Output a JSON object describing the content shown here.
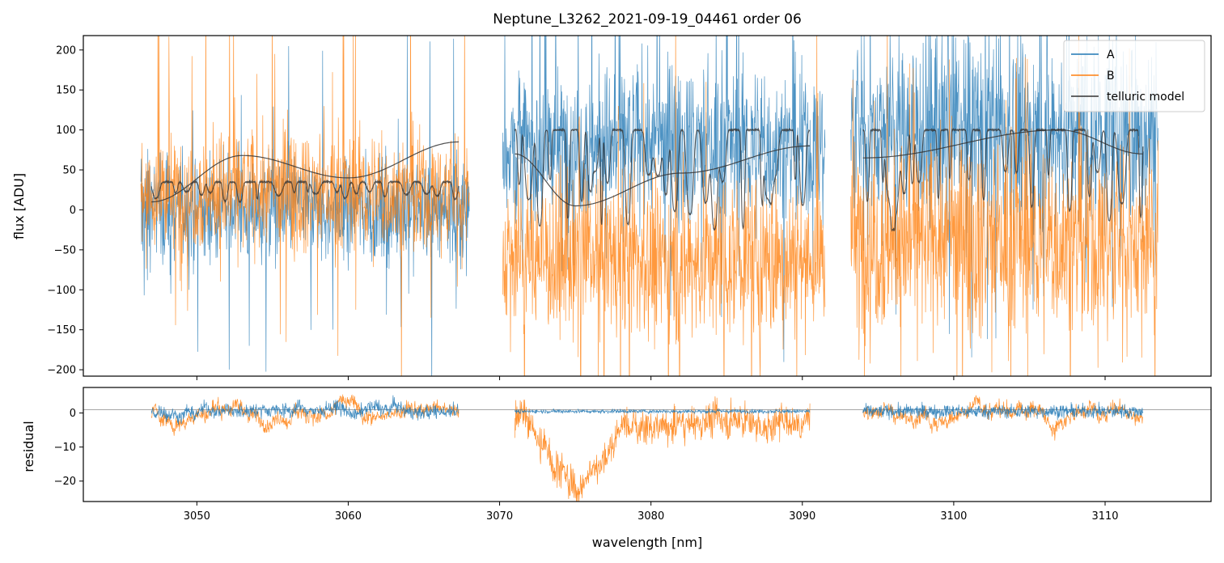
{
  "chart_data": [
    {
      "type": "line",
      "title": "Neptune_L3262_2021-09-19_04461  order 06",
      "xlabel": "",
      "ylabel": "flux [ADU]",
      "xlim": [
        3042.5,
        3117
      ],
      "ylim": [
        -208,
        218
      ],
      "xticks": [
        3050,
        3060,
        3070,
        3080,
        3090,
        3100,
        3110
      ],
      "yticks": [
        -200,
        -150,
        -100,
        -50,
        0,
        50,
        100,
        150,
        200
      ],
      "ytick_labels": [
        "−200",
        "−150",
        "−100",
        "−50",
        "0",
        "50",
        "100",
        "150",
        "200"
      ],
      "legend": {
        "position": "top-right",
        "entries": [
          {
            "name": "A",
            "color": "#1f77b4"
          },
          {
            "name": "B",
            "color": "#ff7f0e"
          },
          {
            "name": "telluric model",
            "color": "#333333"
          }
        ]
      },
      "segments": [
        {
          "x_range": [
            3046.3,
            3068.0
          ],
          "telluric_range": [
            3047.0,
            3067.3
          ]
        },
        {
          "x_range": [
            3070.2,
            3091.5
          ],
          "telluric_range": [
            3071.0,
            3090.5
          ]
        },
        {
          "x_range": [
            3093.2,
            3113.5
          ],
          "telluric_range": [
            3094.0,
            3112.5
          ]
        }
      ],
      "series": [
        {
          "name": "A",
          "color": "#1f77b4",
          "approx_level": [
            0,
            80,
            100
          ],
          "approx_scatter": [
            60,
            90,
            110
          ]
        },
        {
          "name": "B",
          "color": "#ff7f0e",
          "approx_level": [
            20,
            -60,
            -40
          ],
          "approx_scatter": [
            70,
            90,
            110
          ]
        },
        {
          "name": "telluric model",
          "color": "#333333",
          "approx_continuum": [
            [
              3047,
              10
            ],
            [
              3053,
              68
            ],
            [
              3060,
              40
            ],
            [
              3067.3,
              85
            ],
            [
              3071,
              70
            ],
            [
              3075,
              5
            ],
            [
              3082,
              46
            ],
            [
              3090.5,
              80
            ],
            [
              3094,
              65
            ],
            [
              3107,
              100
            ],
            [
              3112.5,
              70
            ]
          ]
        }
      ]
    },
    {
      "type": "line",
      "title": "",
      "xlabel": "wavelength [nm]",
      "ylabel": "residual",
      "xlim": [
        3042.5,
        3117
      ],
      "ylim": [
        -26,
        7.5
      ],
      "xticks": [
        3050,
        3060,
        3070,
        3080,
        3090,
        3100,
        3110
      ],
      "xtick_labels": [
        "3050",
        "3060",
        "3070",
        "3080",
        "3090",
        "3100",
        "3110"
      ],
      "yticks": [
        -20,
        -10,
        0
      ],
      "ytick_labels": [
        "−20",
        "−10",
        "0"
      ],
      "reference_line": 1,
      "series": [
        {
          "name": "A",
          "color": "#1f77b4",
          "approx_level": 0.5
        },
        {
          "name": "B",
          "color": "#ff7f0e",
          "approx_level": 0,
          "notable_dip": {
            "x": 3075,
            "min": -26
          }
        }
      ]
    }
  ]
}
